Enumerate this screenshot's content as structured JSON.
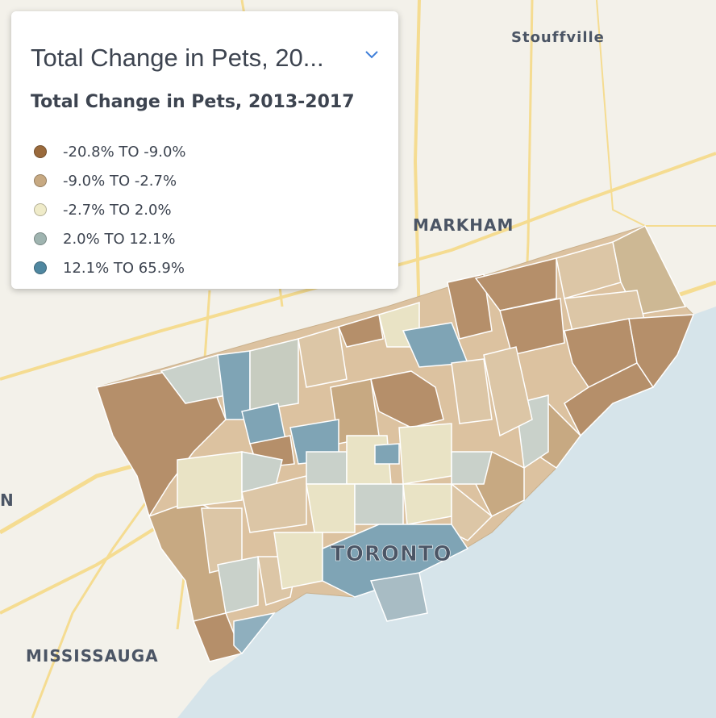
{
  "panel": {
    "dropdown_title": "Total Change in Pets, 20...",
    "legend_title": "Total Change in Pets, 2013-2017",
    "chevron_icon": "chevron-down-icon",
    "legend": [
      {
        "label": "-20.8% TO -9.0%",
        "color": "#9a6a3c"
      },
      {
        "label": "-9.0% TO -2.7%",
        "color": "#c7a982"
      },
      {
        "label": "-2.7% TO 2.0%",
        "color": "#efebc9"
      },
      {
        "label": "2.0% TO 12.1%",
        "color": "#9fb4b0"
      },
      {
        "label": "12.1% TO 65.9%",
        "color": "#4f87a0"
      }
    ]
  },
  "map": {
    "places": {
      "stouffville": "Stouffville",
      "markham": "MARKHAM",
      "toronto": "TORONTO",
      "mississauga": "MISSISSAUGA",
      "edge": "N"
    },
    "colors": {
      "land": "#f3f1ea",
      "water": "#d6e4ea",
      "road": "#f5dc91",
      "boundary": "#ffffff"
    }
  }
}
